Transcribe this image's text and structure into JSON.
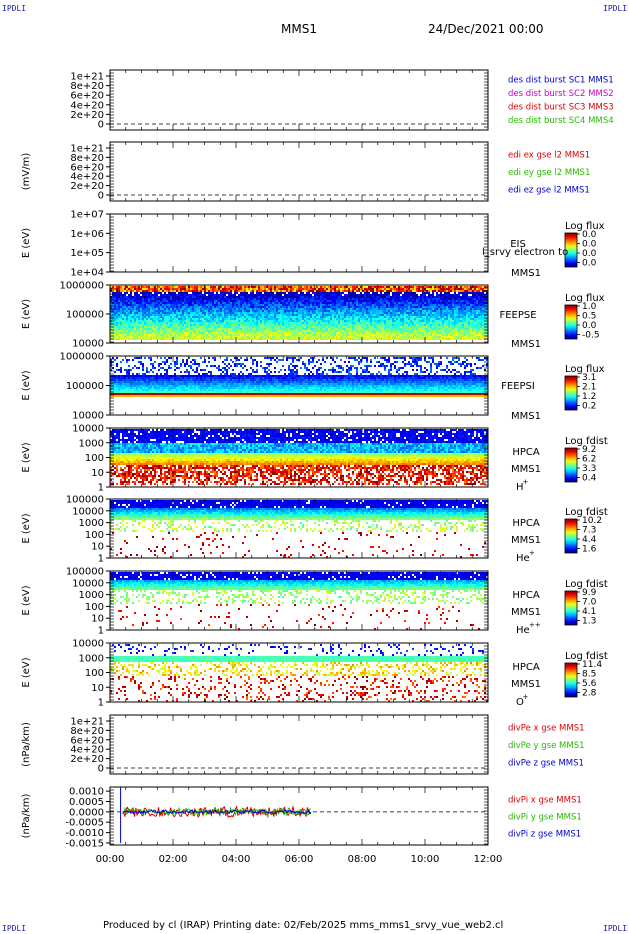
{
  "header": {
    "corner_label": "IPDLI",
    "spacecraft": "MMS1",
    "date": "24/Dec/2021 00:00"
  },
  "footer": {
    "text": "Produced by cl (IRAP)   Printing date: 02/Feb/2025   mms_mms1_srvy_vue_web2.cl"
  },
  "chart_data": [
    {
      "type": "line",
      "panel": "des",
      "ylabel": "",
      "yticks": [
        "0",
        "2e+20",
        "4e+20",
        "6e+20",
        "8e+20",
        "1e+21"
      ],
      "legend": [
        {
          "name": "des dist burst SC1 MMS1",
          "color": "#0000cc"
        },
        {
          "name": "des dist burst SC2 MMS2",
          "color": "#cc00cc"
        },
        {
          "name": "des dist burst SC3 MMS3",
          "color": "#dd0000"
        },
        {
          "name": "des dist burst SC4 MMS4",
          "color": "#22bb00"
        }
      ],
      "series": []
    },
    {
      "type": "line",
      "panel": "edi",
      "ylabel": "(mV/m)",
      "yticks": [
        "0",
        "2e+20",
        "4e+20",
        "6e+20",
        "8e+20",
        "1e+21"
      ],
      "legend": [
        {
          "name": "edi ex gse l2 MMS1",
          "color": "#dd0000"
        },
        {
          "name": "edi ey gse l2 MMS1",
          "color": "#22bb00"
        },
        {
          "name": "edi ez gse l2 MMS1",
          "color": "#0000cc"
        }
      ],
      "series": []
    },
    {
      "type": "heatmap",
      "panel": "EIS",
      "ylabel": "E (eV)",
      "yticks": [
        "1e+04",
        "1e+05",
        "1e+06",
        "1e+07"
      ],
      "labels": [
        "EIS",
        "MMS1"
      ],
      "overlay_text": "l_srvy electron to",
      "colorbar_title": "Log flux",
      "colorbar_ticks": [
        "0.0",
        "0.0",
        "0.0",
        "0.0"
      ],
      "data_hours": [
        0,
        0
      ]
    },
    {
      "type": "heatmap",
      "panel": "FEEPSE",
      "ylabel": "E (eV)",
      "yticks": [
        "10000",
        "100000",
        "1000000"
      ],
      "labels": [
        "FEEPSE",
        "MMS1"
      ],
      "colorbar_title": "Log flux",
      "colorbar_ticks": [
        "1.0",
        "0.5",
        "0.0",
        "-0.5"
      ],
      "data_hours": [
        0.0,
        12.0
      ]
    },
    {
      "type": "heatmap",
      "panel": "FEEPSI",
      "ylabel": "E (eV)",
      "yticks": [
        "10000",
        "100000",
        "1000000"
      ],
      "labels": [
        "FEEPSI",
        "MMS1"
      ],
      "colorbar_title": "Log flux",
      "colorbar_ticks": [
        "3.1",
        "2.1",
        "1.2",
        "0.2"
      ],
      "data_hours": [
        0.0,
        12.0
      ]
    },
    {
      "type": "heatmap",
      "panel": "HPCA H+",
      "ylabel": "E (eV)",
      "yticks": [
        "1",
        "10",
        "100",
        "1000",
        "10000"
      ],
      "labels": [
        "HPCA",
        "MMS1",
        "H",
        "+"
      ],
      "colorbar_title": "Log fdist",
      "colorbar_ticks": [
        "9.2",
        "6.2",
        "3.3",
        "0.4"
      ],
      "data_hours": [
        0.0,
        12.0
      ]
    },
    {
      "type": "heatmap",
      "panel": "HPCA He+",
      "ylabel": "E (eV)",
      "yticks": [
        "1",
        "10",
        "100",
        "1000",
        "10000",
        "100000"
      ],
      "labels": [
        "HPCA",
        "MMS1",
        "He",
        "+"
      ],
      "colorbar_title": "Log fdist",
      "colorbar_ticks": [
        "10.2",
        "7.3",
        "4.4",
        "1.6"
      ],
      "data_hours": [
        0.0,
        12.0
      ]
    },
    {
      "type": "heatmap",
      "panel": "HPCA He++",
      "ylabel": "E (eV)",
      "yticks": [
        "1",
        "10",
        "100",
        "1000",
        "10000",
        "100000"
      ],
      "labels": [
        "HPCA",
        "MMS1",
        "He",
        "++"
      ],
      "colorbar_title": "Log fdist",
      "colorbar_ticks": [
        "9.9",
        "7.0",
        "4.1",
        "1.3"
      ],
      "data_hours": [
        0.0,
        12.0
      ]
    },
    {
      "type": "heatmap",
      "panel": "HPCA O+",
      "ylabel": "E (eV)",
      "yticks": [
        "1",
        "10",
        "100",
        "1000",
        "10000"
      ],
      "labels": [
        "HPCA",
        "MMS1",
        "O",
        "+"
      ],
      "colorbar_title": "Log fdist",
      "colorbar_ticks": [
        "11.4",
        "8.5",
        "5.6",
        "2.8"
      ],
      "data_hours": [
        0.0,
        12.0
      ]
    },
    {
      "type": "line",
      "panel": "divPe",
      "ylabel": "(nPa/km)",
      "yticks": [
        "0",
        "2e+20",
        "4e+20",
        "6e+20",
        "8e+20",
        "1e+21"
      ],
      "legend": [
        {
          "name": "divPe x gse MMS1",
          "color": "#dd0000"
        },
        {
          "name": "divPe y gse MMS1",
          "color": "#22bb00"
        },
        {
          "name": "divPe z gse MMS1",
          "color": "#0000cc"
        }
      ],
      "series": []
    },
    {
      "type": "line",
      "panel": "divPi",
      "ylabel": "(nPa/km)",
      "yticks": [
        "-0.0015",
        "-0.0010",
        "-0.0005",
        "0.0000",
        "0.0005",
        "0.0010"
      ],
      "ylim": [
        -0.0016,
        0.0012
      ],
      "legend": [
        {
          "name": "divPi x gse MMS1",
          "color": "#dd0000"
        },
        {
          "name": "divPi y gse MMS1",
          "color": "#22bb00"
        },
        {
          "name": "divPi z gse MMS1",
          "color": "#0000cc"
        }
      ],
      "data_hours": [
        0.4,
        6.4
      ],
      "series": [
        {
          "name": "divPi x gse MMS1",
          "color": "#dd0000",
          "amplitude": 0.00025
        },
        {
          "name": "divPi y gse MMS1",
          "color": "#22bb00",
          "amplitude": 0.00018
        },
        {
          "name": "divPi z gse MMS1",
          "color": "#0000cc",
          "amplitude": 8e-05
        }
      ]
    }
  ],
  "xaxis": {
    "ticks": [
      "00:00",
      "02:00",
      "04:00",
      "06:00",
      "08:00",
      "10:00",
      "12:00"
    ],
    "range_hours": [
      0,
      12
    ]
  }
}
